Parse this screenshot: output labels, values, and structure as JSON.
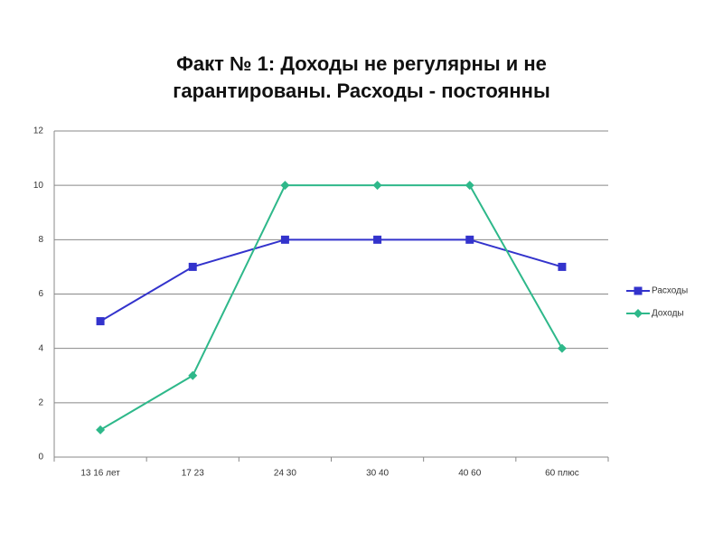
{
  "chart_data": {
    "type": "line",
    "title": [
      "Факт № 1: Доходы не регулярны и не",
      "гарантированы. Расходы - постоянны"
    ],
    "categories": [
      "13 16 лет",
      "17 23",
      "24 30",
      "30 40",
      "40 60",
      "60 плюс"
    ],
    "series": [
      {
        "name": "Расходы",
        "color": "#3333cc",
        "marker": "square",
        "values": [
          5,
          7,
          8,
          8,
          8,
          7
        ]
      },
      {
        "name": "Доходы",
        "color": "#2eb88a",
        "marker": "diamond",
        "values": [
          1,
          3,
          10,
          10,
          10,
          4
        ]
      }
    ],
    "ylim": [
      0,
      12
    ],
    "yticks": [
      0,
      2,
      4,
      6,
      8,
      10,
      12
    ],
    "grid": true,
    "legend": "right"
  }
}
